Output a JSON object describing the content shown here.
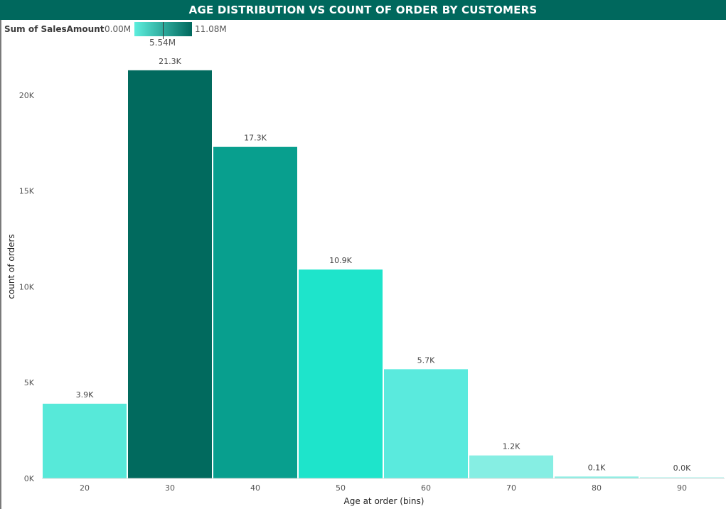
{
  "chart_data": {
    "type": "bar",
    "title": "AGE DISTRIBUTION VS COUNT OF ORDER BY CUSTOMERS",
    "xlabel": "Age at order (bins)",
    "ylabel": "count of orders",
    "categories": [
      "20",
      "30",
      "40",
      "50",
      "60",
      "70",
      "80",
      "90"
    ],
    "values": [
      3900,
      21300,
      17300,
      10900,
      5700,
      1200,
      100,
      10
    ],
    "data_labels": [
      "3.9K",
      "21.3K",
      "17.3K",
      "10.9K",
      "5.7K",
      "1.2K",
      "0.1K",
      "0.0K"
    ],
    "bar_colors": [
      "#57e9d9",
      "#016a5e",
      "#089f8e",
      "#1ee4cb",
      "#5aeadd",
      "#86eee3",
      "#8deee4",
      "#cdf7f2"
    ],
    "ylim": [
      0,
      22000
    ],
    "yticks": [
      0,
      5000,
      10000,
      15000,
      20000
    ],
    "ytick_labels": [
      "0K",
      "5K",
      "10K",
      "15K",
      "20K"
    ],
    "grid": false,
    "legend": {
      "title": "Sum of SalesAmount",
      "min_label": "0.00M",
      "mid_label": "5.54M",
      "max_label": "11.08M",
      "min_color": "#5deedd",
      "max_color": "#00685d",
      "placement": "top-left"
    }
  }
}
